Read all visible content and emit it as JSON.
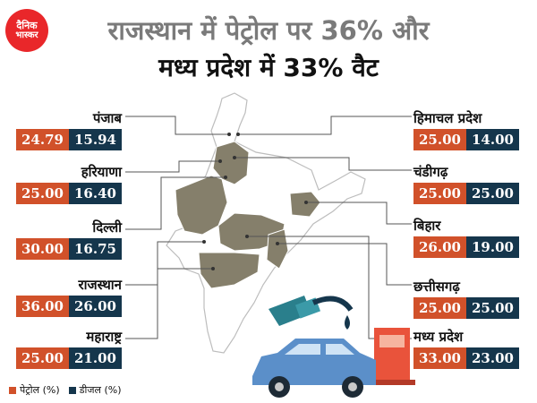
{
  "brand": {
    "line1": "दैनिक",
    "line2": "भास्कर"
  },
  "chart_data": {
    "type": "table",
    "title": "राजस्थान में पेट्रोल पर 36% और",
    "subtitle": "मध्य प्रदेश में 33% वैट",
    "columns": [
      "पेट्रोल (%)",
      "डीजल (%)"
    ],
    "rows": [
      {
        "state": "पंजाब",
        "petrol": "24.79",
        "diesel": "15.94"
      },
      {
        "state": "हरियाणा",
        "petrol": "25.00",
        "diesel": "16.40"
      },
      {
        "state": "दिल्ली",
        "petrol": "30.00",
        "diesel": "16.75"
      },
      {
        "state": "राजस्थान",
        "petrol": "36.00",
        "diesel": "26.00"
      },
      {
        "state": "महाराष्ट्र",
        "petrol": "25.00",
        "diesel": "21.00"
      },
      {
        "state": "हिमाचल प्रदेश",
        "petrol": "25.00",
        "diesel": "14.00"
      },
      {
        "state": "चंडीगढ़",
        "petrol": "25.00",
        "diesel": "25.00"
      },
      {
        "state": "बिहार",
        "petrol": "26.00",
        "diesel": "19.00"
      },
      {
        "state": "छत्तीसगढ़",
        "petrol": "25.00",
        "diesel": "25.00"
      },
      {
        "state": "मध्य प्रदेश",
        "petrol": "33.00",
        "diesel": "23.00"
      }
    ]
  },
  "legend": {
    "petrol": "पेट्रोल (%)",
    "diesel": "डीजल (%)"
  },
  "colors": {
    "petrol": "#d1512a",
    "diesel": "#15364c",
    "highlight": "#857f6b",
    "map": "#ffffff"
  },
  "icons": [
    "fuel-nozzle-icon",
    "fuel-pump-icon",
    "car-icon"
  ]
}
